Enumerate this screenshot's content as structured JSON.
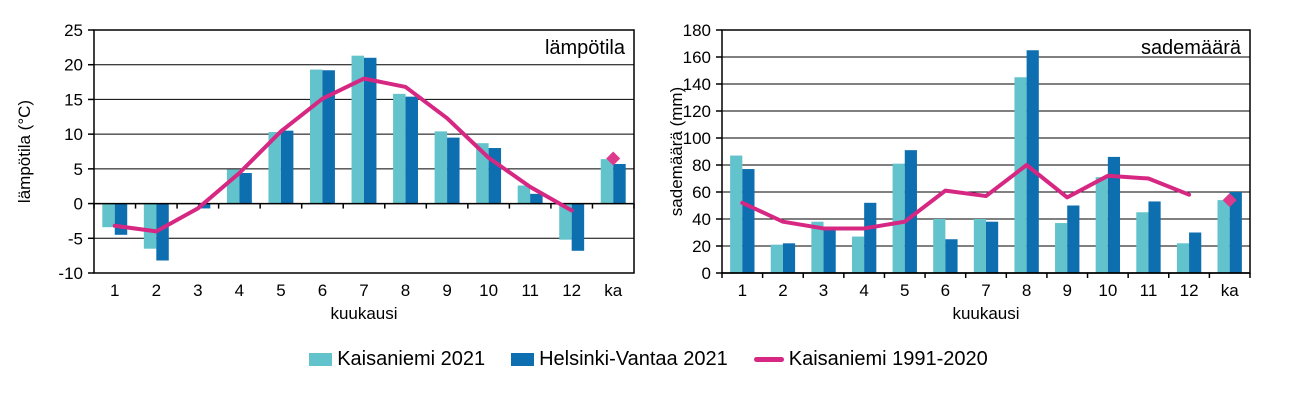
{
  "legend": {
    "position": "bottom",
    "items": [
      {
        "label": "Kaisaniemi 2021",
        "marker": "square",
        "color": "#62C3CC"
      },
      {
        "label": "Helsinki-Vantaa 2021",
        "marker": "square",
        "color": "#0D6EB0"
      },
      {
        "label": "Kaisaniemi 1991-2020",
        "marker": "line",
        "color": "#D62882"
      }
    ]
  },
  "colors": {
    "kaisaniemi_2021": "#62C3CC",
    "helsinki_vantaa_2021": "#0D6EB0",
    "kaisaniemi_normal_line": "#D62882",
    "normal_diamond": "#DE3A8C",
    "axis_and_grid": "#000000",
    "background": "#ffffff"
  },
  "chart_data": [
    {
      "type": "bar",
      "title": "lämpötila",
      "xlabel": "kuukausi",
      "ylabel": "lämpötila (°C)",
      "categories": [
        "1",
        "2",
        "3",
        "4",
        "5",
        "6",
        "7",
        "8",
        "9",
        "10",
        "11",
        "12",
        "ka"
      ],
      "ylim": [
        -10,
        25
      ],
      "ytick_step": 5,
      "grid": true,
      "series": [
        {
          "name": "Kaisaniemi 2021",
          "type": "bar",
          "color": "#62C3CC",
          "values": [
            -3.4,
            -6.5,
            0,
            4.9,
            10.3,
            19.3,
            21.3,
            15.8,
            10.4,
            8.7,
            2.6,
            -5.2,
            6.4
          ]
        },
        {
          "name": "Helsinki-Vantaa 2021",
          "type": "bar",
          "color": "#0D6EB0",
          "values": [
            -4.5,
            -8.2,
            -0.7,
            4.4,
            10.5,
            19.2,
            21.0,
            15.4,
            9.5,
            8.0,
            1.4,
            -6.8,
            5.7
          ]
        },
        {
          "name": "Kaisaniemi 1991-2020",
          "type": "line",
          "color": "#D62882",
          "values": [
            -3.2,
            -4.0,
            -0.7,
            4.4,
            10.4,
            15.1,
            18.0,
            16.8,
            12.3,
            6.6,
            2.4,
            -1.0
          ],
          "ka_marker": 6.5,
          "ka_marker_color": "#DE3A8C"
        }
      ]
    },
    {
      "type": "bar",
      "title": "sademäärä",
      "xlabel": "kuukausi",
      "ylabel": "sademäärä (mm)",
      "categories": [
        "1",
        "2",
        "3",
        "4",
        "5",
        "6",
        "7",
        "8",
        "9",
        "10",
        "11",
        "12",
        "ka"
      ],
      "ylim": [
        0,
        180
      ],
      "ytick_step": 20,
      "grid": true,
      "series": [
        {
          "name": "Kaisaniemi 2021",
          "type": "bar",
          "color": "#62C3CC",
          "values": [
            87,
            21,
            38,
            27,
            81,
            40,
            40,
            145,
            37,
            71,
            45,
            22,
            54
          ]
        },
        {
          "name": "Helsinki-Vantaa 2021",
          "type": "bar",
          "color": "#0D6EB0",
          "values": [
            77,
            22,
            33,
            52,
            91,
            25,
            38,
            165,
            50,
            86,
            53,
            30,
            60
          ]
        },
        {
          "name": "Kaisaniemi 1991-2020",
          "type": "line",
          "color": "#D62882",
          "values": [
            52,
            38,
            33,
            33,
            38,
            61,
            57,
            80,
            56,
            72,
            70,
            58
          ],
          "ka_marker": 54,
          "ka_marker_color": "#DE3A8C"
        }
      ]
    }
  ]
}
